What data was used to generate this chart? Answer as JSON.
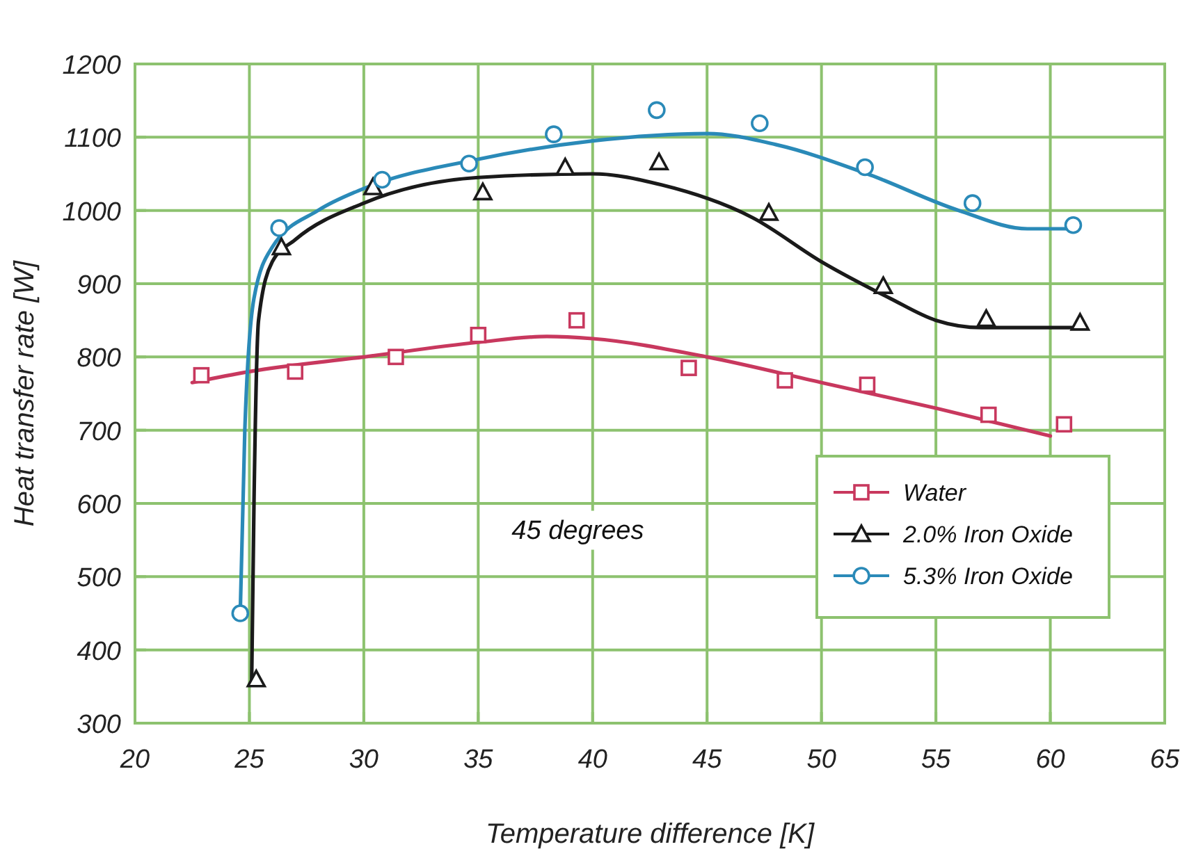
{
  "chart_data": {
    "type": "scatter",
    "xlabel": "Temperature difference [K]",
    "ylabel": "Heat transfer rate [W]",
    "annotations": [
      "45 degrees"
    ],
    "xlim": [
      20,
      65
    ],
    "xticks": [
      20,
      25,
      30,
      35,
      40,
      45,
      50,
      55,
      60,
      65
    ],
    "ylim": [
      300,
      1200
    ],
    "yticks": [
      300,
      400,
      500,
      600,
      700,
      800,
      900,
      1000,
      1100,
      1200
    ],
    "grid": true,
    "legend": "right",
    "series": [
      {
        "name": "Water",
        "color": "#c8385e",
        "marker": "square",
        "x": [
          22.9,
          27.0,
          31.4,
          35.0,
          39.3,
          44.2,
          48.4,
          52.0,
          57.3,
          60.6
        ],
        "values": [
          775,
          780,
          800,
          830,
          850,
          785,
          768,
          762,
          721,
          708
        ]
      },
      {
        "name": "2.0% Iron Oxide",
        "color": "#1a1a1a",
        "marker": "triangle",
        "x": [
          25.3,
          26.4,
          30.4,
          35.2,
          38.8,
          42.9,
          47.7,
          52.7,
          57.2,
          61.3
        ],
        "values": [
          360,
          950,
          1032,
          1025,
          1059,
          1066,
          997,
          897,
          852,
          847
        ]
      },
      {
        "name": "5.3% Iron Oxide",
        "color": "#2a8ab8",
        "marker": "circle",
        "x": [
          24.6,
          26.3,
          30.8,
          34.6,
          38.3,
          42.8,
          47.3,
          51.9,
          56.6,
          61.0
        ],
        "values": [
          450,
          976,
          1042,
          1064,
          1104,
          1137,
          1119,
          1059,
          1010,
          980
        ]
      },
      {
        "type": "line",
        "color": "#c8385e",
        "x": [
          22.5,
          25,
          30,
          35,
          38,
          40,
          45,
          50,
          55,
          60
        ],
        "values": [
          765,
          780,
          800,
          820,
          828,
          825,
          800,
          765,
          730,
          692
        ]
      },
      {
        "type": "line",
        "color": "#1a1a1a",
        "x": [
          25.1,
          25.2,
          25.4,
          26,
          27,
          30,
          35,
          40,
          43,
          47,
          50,
          53,
          55,
          57,
          61
        ],
        "values": [
          360,
          600,
          850,
          930,
          960,
          1010,
          1045,
          1050,
          1035,
          990,
          930,
          880,
          850,
          840,
          840
        ]
      },
      {
        "type": "line",
        "color": "#2a8ab8",
        "x": [
          24.6,
          24.8,
          25.2,
          26,
          28,
          30,
          35,
          40,
          45,
          48,
          52,
          56,
          59,
          61
        ],
        "values": [
          450,
          700,
          880,
          950,
          1000,
          1030,
          1070,
          1095,
          1105,
          1090,
          1050,
          1000,
          975,
          975
        ]
      }
    ]
  }
}
